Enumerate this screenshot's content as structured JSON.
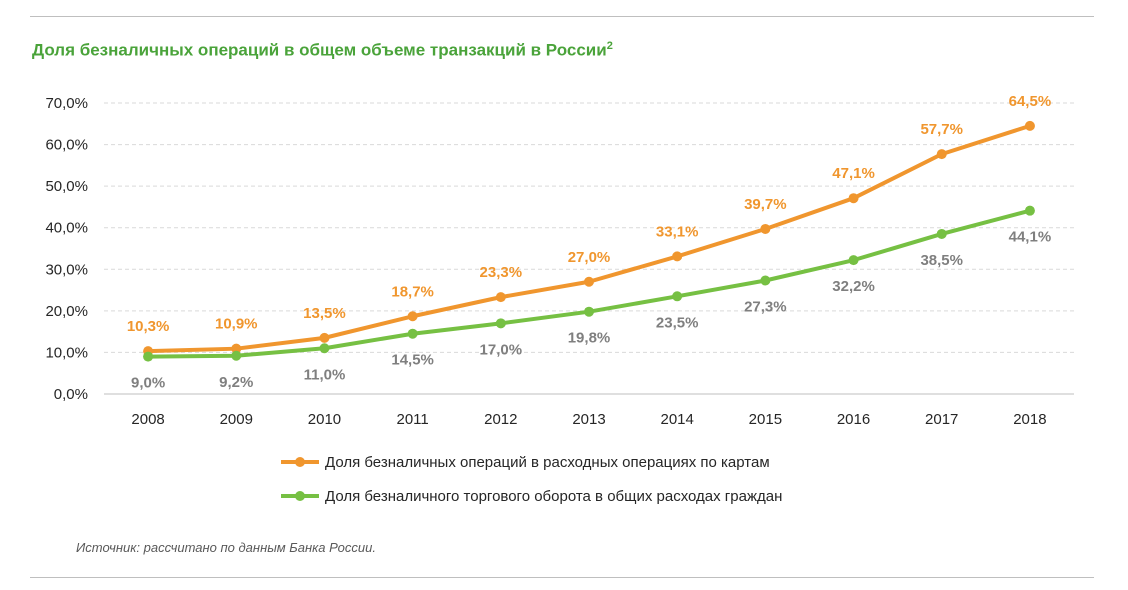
{
  "title": "Доля безналичных операций в общем объеме транзакций в России",
  "title_sup": "2",
  "source": "Источник: рассчитано по данным Банка России.",
  "chart_data": {
    "type": "line",
    "x": [
      "2008",
      "2009",
      "2010",
      "2011",
      "2012",
      "2013",
      "2014",
      "2015",
      "2016",
      "2017",
      "2018"
    ],
    "ylim": [
      0,
      70
    ],
    "yticks": [
      0,
      10,
      20,
      30,
      40,
      50,
      60,
      70
    ],
    "ytick_labels": [
      "0,0%",
      "10,0%",
      "20,0%",
      "30,0%",
      "40,0%",
      "50,0%",
      "60,0%",
      "70,0%"
    ],
    "grid": true,
    "legend": "bottom",
    "series": [
      {
        "name": "Доля безналичных операций в расходных операциях по картам",
        "color": "#f0962e",
        "values": [
          10.3,
          10.9,
          13.5,
          18.7,
          23.3,
          27.0,
          33.1,
          39.7,
          47.1,
          57.7,
          64.5
        ],
        "labels": [
          "10,3%",
          "10,9%",
          "13,5%",
          "18,7%",
          "23,3%",
          "27,0%",
          "33,1%",
          "39,7%",
          "47,1%",
          "57,7%",
          "64,5%"
        ],
        "label_color": "#f0962e",
        "label_position": "above"
      },
      {
        "name": "Доля безналичного торгового оборота в общих расходах граждан",
        "color": "#76c043",
        "values": [
          9.0,
          9.2,
          11.0,
          14.5,
          17.0,
          19.8,
          23.5,
          27.3,
          32.2,
          38.5,
          44.1
        ],
        "labels": [
          "9,0%",
          "9,2%",
          "11,0%",
          "14,5%",
          "17,0%",
          "19,8%",
          "23,5%",
          "27,3%",
          "32,2%",
          "38,5%",
          "44,1%"
        ],
        "label_color": "#7f7f7f",
        "label_position": "below"
      }
    ]
  }
}
